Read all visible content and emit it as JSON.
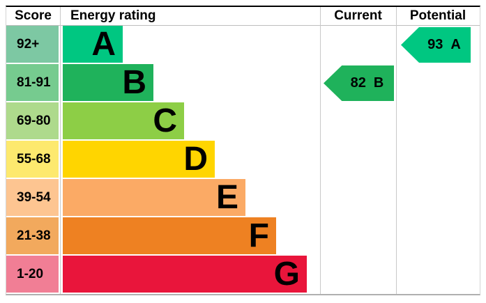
{
  "header": {
    "score": "Score",
    "energy_rating": "Energy rating",
    "current": "Current",
    "potential": "Potential"
  },
  "chart_data": {
    "type": "bar",
    "description": "EPC energy efficiency rating chart",
    "categories": [
      "A",
      "B",
      "C",
      "D",
      "E",
      "F",
      "G"
    ],
    "bands": [
      {
        "score_range": "92+",
        "letter": "A",
        "bar_color": "#00c781",
        "score_bg_color": "#7dc8a3"
      },
      {
        "score_range": "81-91",
        "letter": "B",
        "bar_color": "#1fb25b",
        "score_bg_color": "#76cb8f"
      },
      {
        "score_range": "69-80",
        "letter": "C",
        "bar_color": "#8dce46",
        "score_bg_color": "#aeda8c"
      },
      {
        "score_range": "55-68",
        "letter": "D",
        "bar_color": "#ffd500",
        "score_bg_color": "#fde96e"
      },
      {
        "score_range": "39-54",
        "letter": "E",
        "bar_color": "#fbaa65",
        "score_bg_color": "#fdc591"
      },
      {
        "score_range": "21-38",
        "letter": "F",
        "bar_color": "#ee8122",
        "score_bg_color": "#f2a95d"
      },
      {
        "score_range": "1-20",
        "letter": "G",
        "bar_color": "#e9153b",
        "score_bg_color": "#f17e95"
      }
    ],
    "current": {
      "score": "82",
      "band": "B",
      "band_row": 1,
      "arrow_color": "#1fb25b"
    },
    "potential": {
      "score": "93",
      "band": "A",
      "band_row": 0,
      "arrow_color": "#00c781"
    }
  }
}
